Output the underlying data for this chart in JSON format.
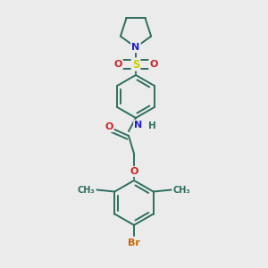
{
  "background_color": "#ebebeb",
  "atom_colors": {
    "C": "#2d6e5e",
    "N": "#2222cc",
    "O": "#cc2222",
    "S": "#cccc00",
    "Br": "#cc6600",
    "H": "#2d6e5e"
  },
  "bond_color": "#2d6e5e",
  "bond_width": 1.4,
  "fig_width": 3.0,
  "fig_height": 3.0,
  "dpi": 100
}
